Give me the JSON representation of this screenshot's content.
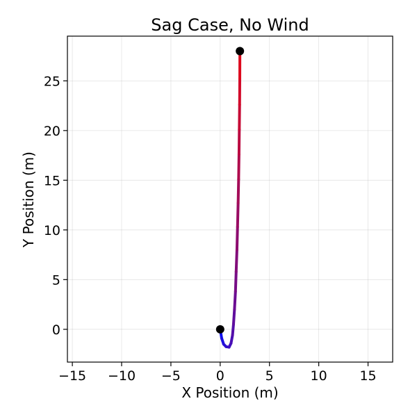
{
  "chart_data": {
    "type": "line",
    "title": "Sag Case, No Wind",
    "xlabel": "X Position (m)",
    "ylabel": "Y Position (m)",
    "xlim": [
      -15.5,
      17.5
    ],
    "ylim": [
      -3.3,
      29.5
    ],
    "xticks": [
      -15,
      -10,
      -5,
      0,
      5,
      10,
      15
    ],
    "yticks": [
      0,
      5,
      10,
      15,
      20,
      25
    ],
    "xtick_labels": [
      "−15",
      "−10",
      "−5",
      "0",
      "5",
      "10",
      "15"
    ],
    "ytick_labels": [
      "0",
      "5",
      "10",
      "15",
      "20",
      "25"
    ],
    "grid": true,
    "color_gradient": {
      "start": "#1010ee",
      "end": "#dd0a1e"
    },
    "endpoint_color": "#000000",
    "series": [
      {
        "x": [
          0.0,
          0.15,
          0.35,
          0.6,
          0.9,
          1.1,
          1.25,
          1.35,
          1.45,
          1.55,
          1.62,
          1.7,
          1.76,
          1.82,
          1.87,
          1.91,
          1.94,
          1.97,
          1.99,
          2.0
        ],
        "y": [
          0.0,
          -0.9,
          -1.5,
          -1.75,
          -1.8,
          -1.4,
          -0.6,
          0.5,
          2.0,
          3.8,
          5.8,
          8.0,
          10.3,
          12.7,
          15.1,
          17.6,
          20.1,
          22.6,
          25.2,
          28.0
        ]
      }
    ],
    "endpoints": [
      {
        "x": 0.0,
        "y": 0.0
      },
      {
        "x": 2.0,
        "y": 28.0
      }
    ]
  }
}
